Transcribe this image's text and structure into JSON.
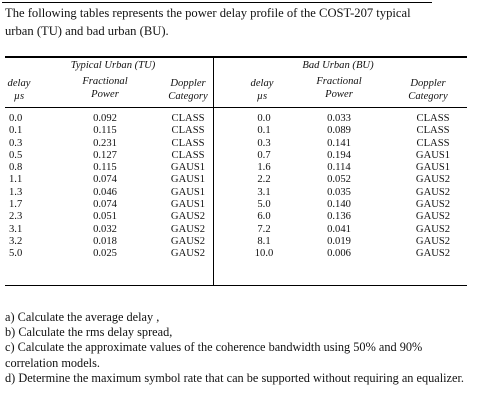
{
  "intro": "The following tables represents the power delay profile of the COST-207 typical urban (TU) and bad urban (BU).",
  "table": {
    "tu_title": "Typical Urban (TU)",
    "bu_title": "Bad Urban (BU)",
    "headers": {
      "delay": "delay",
      "delay_unit": "µs",
      "power_line1": "Fractional",
      "power_line2": "Power",
      "doppler_line1": "Doppler",
      "doppler_line2": "Category"
    },
    "tu_rows": [
      {
        "delay": "0.0",
        "power": "0.092",
        "doppler": "CLASS"
      },
      {
        "delay": "0.1",
        "power": "0.115",
        "doppler": "CLASS"
      },
      {
        "delay": "0.3",
        "power": "0.231",
        "doppler": "CLASS"
      },
      {
        "delay": "0.5",
        "power": "0.127",
        "doppler": "CLASS"
      },
      {
        "delay": "0.8",
        "power": "0.115",
        "doppler": "GAUS1"
      },
      {
        "delay": "1.1",
        "power": "0.074",
        "doppler": "GAUS1"
      },
      {
        "delay": "1.3",
        "power": "0.046",
        "doppler": "GAUS1"
      },
      {
        "delay": "1.7",
        "power": "0.074",
        "doppler": "GAUS1"
      },
      {
        "delay": "2.3",
        "power": "0.051",
        "doppler": "GAUS2"
      },
      {
        "delay": "3.1",
        "power": "0.032",
        "doppler": "GAUS2"
      },
      {
        "delay": "3.2",
        "power": "0.018",
        "doppler": "GAUS2"
      },
      {
        "delay": "5.0",
        "power": "0.025",
        "doppler": "GAUS2"
      }
    ],
    "bu_rows": [
      {
        "delay": "0.0",
        "power": "0.033",
        "doppler": "CLASS"
      },
      {
        "delay": "0.1",
        "power": "0.089",
        "doppler": "CLASS"
      },
      {
        "delay": "0.3",
        "power": "0.141",
        "doppler": "CLASS"
      },
      {
        "delay": "0.7",
        "power": "0.194",
        "doppler": "GAUS1"
      },
      {
        "delay": "1.6",
        "power": "0.114",
        "doppler": "GAUS1"
      },
      {
        "delay": "2.2",
        "power": "0.052",
        "doppler": "GAUS2"
      },
      {
        "delay": "3.1",
        "power": "0.035",
        "doppler": "GAUS2"
      },
      {
        "delay": "5.0",
        "power": "0.140",
        "doppler": "GAUS2"
      },
      {
        "delay": "6.0",
        "power": "0.136",
        "doppler": "GAUS2"
      },
      {
        "delay": "7.2",
        "power": "0.041",
        "doppler": "GAUS2"
      },
      {
        "delay": "8.1",
        "power": "0.019",
        "doppler": "GAUS2"
      },
      {
        "delay": "10.0",
        "power": "0.006",
        "doppler": "GAUS2"
      }
    ]
  },
  "questions": [
    "a) Calculate the average delay ,",
    "b) Calculate the rms delay spread,",
    "c) Calculate the approximate values of the coherence bandwidth using 50% and 90% correlation models.",
    "d) Determine the maximum symbol rate that can be supported without requiring an equalizer."
  ]
}
